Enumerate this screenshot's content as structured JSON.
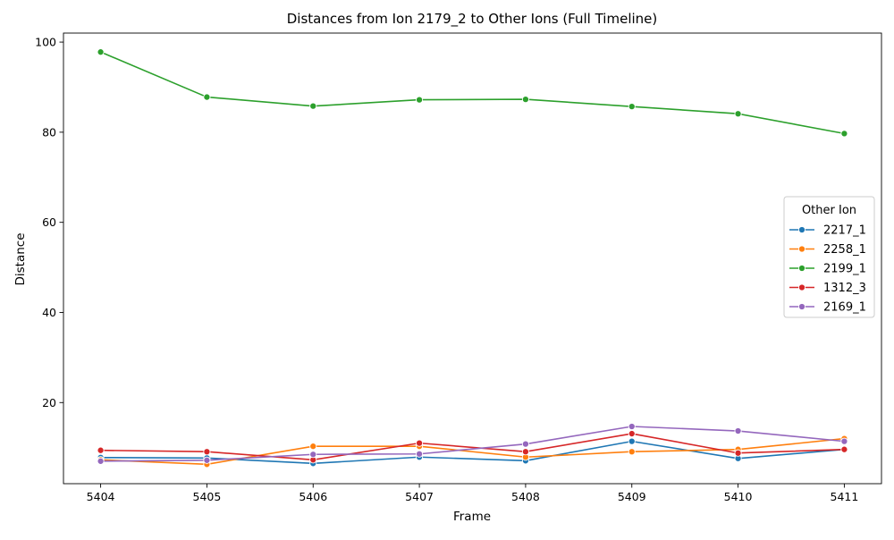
{
  "chart_data": {
    "type": "line",
    "title": "Distances from Ion 2179_2 to Other Ions (Full Timeline)",
    "xlabel": "Frame",
    "ylabel": "Distance",
    "x": [
      5404,
      5405,
      5406,
      5407,
      5408,
      5409,
      5410,
      5411
    ],
    "x_ticks": [
      "5404",
      "5405",
      "5406",
      "5407",
      "5408",
      "5409",
      "5410",
      "5411"
    ],
    "xlim": [
      5403.65,
      5411.35
    ],
    "y_ticks": [
      "20",
      "40",
      "60",
      "80",
      "100"
    ],
    "y_tick_values": [
      20,
      40,
      60,
      80,
      100
    ],
    "ylim": [
      2.0,
      102.0
    ],
    "grid": false,
    "legend": {
      "title": "Other Ion",
      "placement": "center-right"
    },
    "series": [
      {
        "name": "2217_1",
        "color": "#1f77b4",
        "values": [
          7.8,
          7.7,
          6.5,
          7.9,
          7.1,
          11.4,
          7.6,
          9.6
        ]
      },
      {
        "name": "2258_1",
        "color": "#ff7f0e",
        "values": [
          7.3,
          6.3,
          10.3,
          10.3,
          7.9,
          9.1,
          9.6,
          12.0
        ]
      },
      {
        "name": "2199_1",
        "color": "#2ca02c",
        "values": [
          97.8,
          87.8,
          85.8,
          87.2,
          87.3,
          85.7,
          84.1,
          79.7
        ]
      },
      {
        "name": "1312_3",
        "color": "#d62728",
        "values": [
          9.4,
          9.1,
          7.3,
          11.0,
          9.1,
          13.1,
          8.8,
          9.6
        ]
      },
      {
        "name": "2169_1",
        "color": "#9467bd",
        "values": [
          7.0,
          7.2,
          8.5,
          8.6,
          10.8,
          14.7,
          13.7,
          11.4
        ]
      }
    ]
  }
}
